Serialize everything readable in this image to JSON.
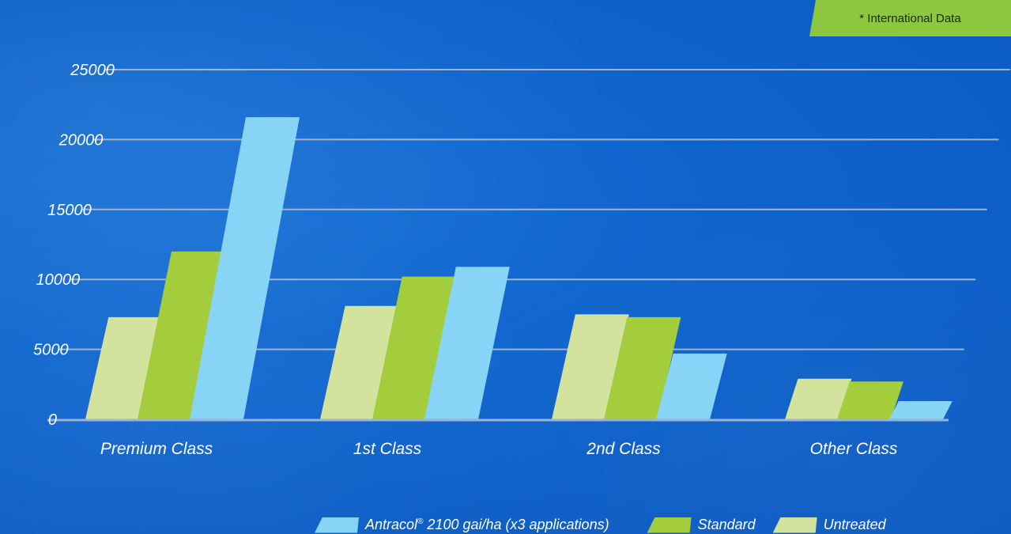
{
  "note": "* International Data",
  "colors": {
    "background": "#0f64cc",
    "antracol": "#87d4f7",
    "standard": "#a3cd3c",
    "untreated": "#d3e39e",
    "gridline": "#9ab3d6",
    "badge": "#8dc63f"
  },
  "legend": [
    {
      "name": "Antracol® 2100 gai/ha (x3  applications)",
      "color": "#87d4f7"
    },
    {
      "name": "Standard",
      "color": "#a3cd3c"
    },
    {
      "name": "Untreated",
      "color": "#d3e39e"
    }
  ],
  "chart_data": {
    "type": "bar",
    "categories": [
      "Premium Class",
      "1st Class",
      "2nd Class",
      "Other Class"
    ],
    "series": [
      {
        "name": "Untreated",
        "values": [
          7300,
          8100,
          7500,
          2900
        ]
      },
      {
        "name": "Standard",
        "values": [
          12000,
          10200,
          7300,
          2700
        ]
      },
      {
        "name": "Antracol® 2100 gai/ha (x3  applications)",
        "values": [
          21600,
          10900,
          4700,
          1300
        ]
      }
    ],
    "yticks": [
      0,
      5000,
      10000,
      15000,
      20000,
      25000
    ],
    "ylim": [
      0,
      25000
    ],
    "grid": true,
    "legend_position": "bottom"
  }
}
